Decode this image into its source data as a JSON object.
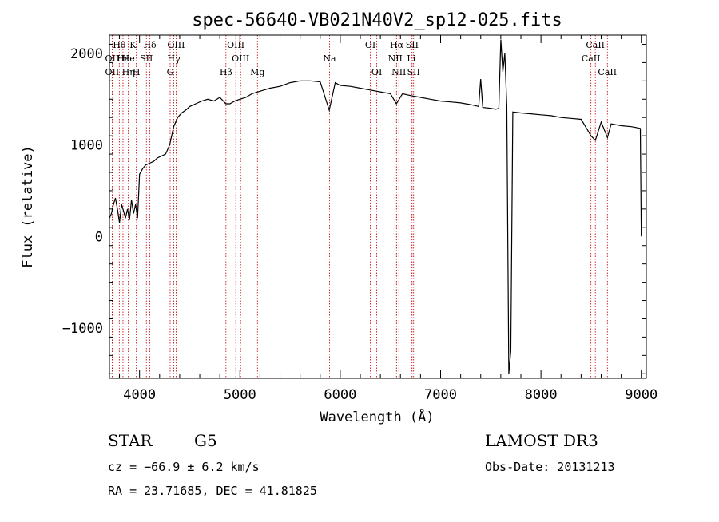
{
  "chart_data": {
    "type": "line",
    "title": "spec-56640-VB021N40V2_sp12-025.fits",
    "xlabel": "Wavelength (Å)",
    "ylabel": "Flux (relative)",
    "xlim": [
      3700,
      9050
    ],
    "ylim": [
      -1550,
      2200
    ],
    "x_ticks": [
      4000,
      5000,
      6000,
      7000,
      8000,
      9000
    ],
    "y_ticks": [
      -1000,
      0,
      1000,
      2000
    ],
    "grid": false,
    "series": [
      {
        "name": "spectrum",
        "x": [
          3700,
          3720,
          3740,
          3760,
          3780,
          3800,
          3820,
          3840,
          3860,
          3880,
          3900,
          3920,
          3940,
          3960,
          3980,
          4000,
          4030,
          4060,
          4100,
          4140,
          4180,
          4220,
          4260,
          4300,
          4340,
          4380,
          4420,
          4460,
          4500,
          4560,
          4620,
          4680,
          4740,
          4800,
          4860,
          4900,
          4950,
          5000,
          5060,
          5120,
          5180,
          5240,
          5300,
          5400,
          5500,
          5600,
          5700,
          5800,
          5890,
          5950,
          6000,
          6100,
          6200,
          6300,
          6400,
          6500,
          6560,
          6620,
          6700,
          6800,
          6900,
          7000,
          7100,
          7200,
          7300,
          7380,
          7400,
          7420,
          7500,
          7550,
          7580,
          7600,
          7620,
          7640,
          7660,
          7680,
          7700,
          7720,
          7800,
          7900,
          8000,
          8100,
          8200,
          8300,
          8400,
          8498,
          8542,
          8600,
          8662,
          8700,
          8800,
          8900,
          8950,
          8990,
          9000
        ],
        "y": [
          200,
          250,
          350,
          420,
          300,
          150,
          350,
          280,
          200,
          300,
          180,
          400,
          250,
          350,
          200,
          680,
          740,
          780,
          800,
          820,
          860,
          880,
          900,
          1000,
          1200,
          1300,
          1350,
          1380,
          1420,
          1450,
          1480,
          1500,
          1480,
          1520,
          1450,
          1450,
          1480,
          1500,
          1520,
          1560,
          1580,
          1600,
          1620,
          1640,
          1680,
          1700,
          1700,
          1690,
          1380,
          1680,
          1650,
          1640,
          1620,
          1600,
          1580,
          1560,
          1450,
          1560,
          1540,
          1520,
          1500,
          1480,
          1470,
          1460,
          1440,
          1420,
          1720,
          1410,
          1400,
          1390,
          1400,
          2150,
          1800,
          2000,
          1420,
          -1500,
          -1250,
          1360,
          1350,
          1340,
          1330,
          1320,
          1300,
          1290,
          1280,
          1100,
          1050,
          1250,
          1080,
          1230,
          1210,
          1200,
          1190,
          1180,
          0
        ]
      }
    ],
    "lines": [
      {
        "label": "Hθ",
        "wave": 3798,
        "row": 0
      },
      {
        "label": "OII",
        "wave": 3727,
        "row": 1
      },
      {
        "label": "OII",
        "wave": 3727,
        "row": 2
      },
      {
        "label": "Hε",
        "wave": 3835,
        "row": 1
      },
      {
        "label": "Hη",
        "wave": 3889,
        "row": 2
      },
      {
        "label": "K",
        "wave": 3934,
        "row": 0
      },
      {
        "label": "He",
        "wave": 3889,
        "row": 1
      },
      {
        "label": "H",
        "wave": 3968,
        "row": 2
      },
      {
        "label": "SII",
        "wave": 4068,
        "row": 1
      },
      {
        "label": "Hδ",
        "wave": 4102,
        "row": 0
      },
      {
        "label": "OIII",
        "wave": 4364,
        "row": 0
      },
      {
        "label": "Hγ",
        "wave": 4341,
        "row": 1
      },
      {
        "label": "G",
        "wave": 4305,
        "row": 2
      },
      {
        "label": "OIII",
        "wave": 4959,
        "row": 0
      },
      {
        "label": "OIII",
        "wave": 5007,
        "row": 1
      },
      {
        "label": "Hβ",
        "wave": 4861,
        "row": 2
      },
      {
        "label": "Mg",
        "wave": 5175,
        "row": 2
      },
      {
        "label": "Na",
        "wave": 5893,
        "row": 1
      },
      {
        "label": "OI",
        "wave": 6300,
        "row": 0
      },
      {
        "label": "OI",
        "wave": 6364,
        "row": 2
      },
      {
        "label": "Hα",
        "wave": 6563,
        "row": 0
      },
      {
        "label": "SII",
        "wave": 6716,
        "row": 0
      },
      {
        "label": "NII",
        "wave": 6548,
        "row": 1
      },
      {
        "label": "Li",
        "wave": 6708,
        "row": 1
      },
      {
        "label": "NII",
        "wave": 6584,
        "row": 2
      },
      {
        "label": "SII",
        "wave": 6731,
        "row": 2
      },
      {
        "label": "CaII",
        "wave": 8542,
        "row": 0
      },
      {
        "label": "CaII",
        "wave": 8498,
        "row": 1
      },
      {
        "label": "CaII",
        "wave": 8662,
        "row": 2
      }
    ]
  },
  "info": {
    "classification": "STAR",
    "subclass": "G5",
    "survey": "LAMOST DR3",
    "cz": "cz = −66.9 ± 6.2 km/s",
    "obs_date": "Obs-Date: 20131213",
    "radec": "RA =  23.71685, DEC =  41.81825"
  }
}
